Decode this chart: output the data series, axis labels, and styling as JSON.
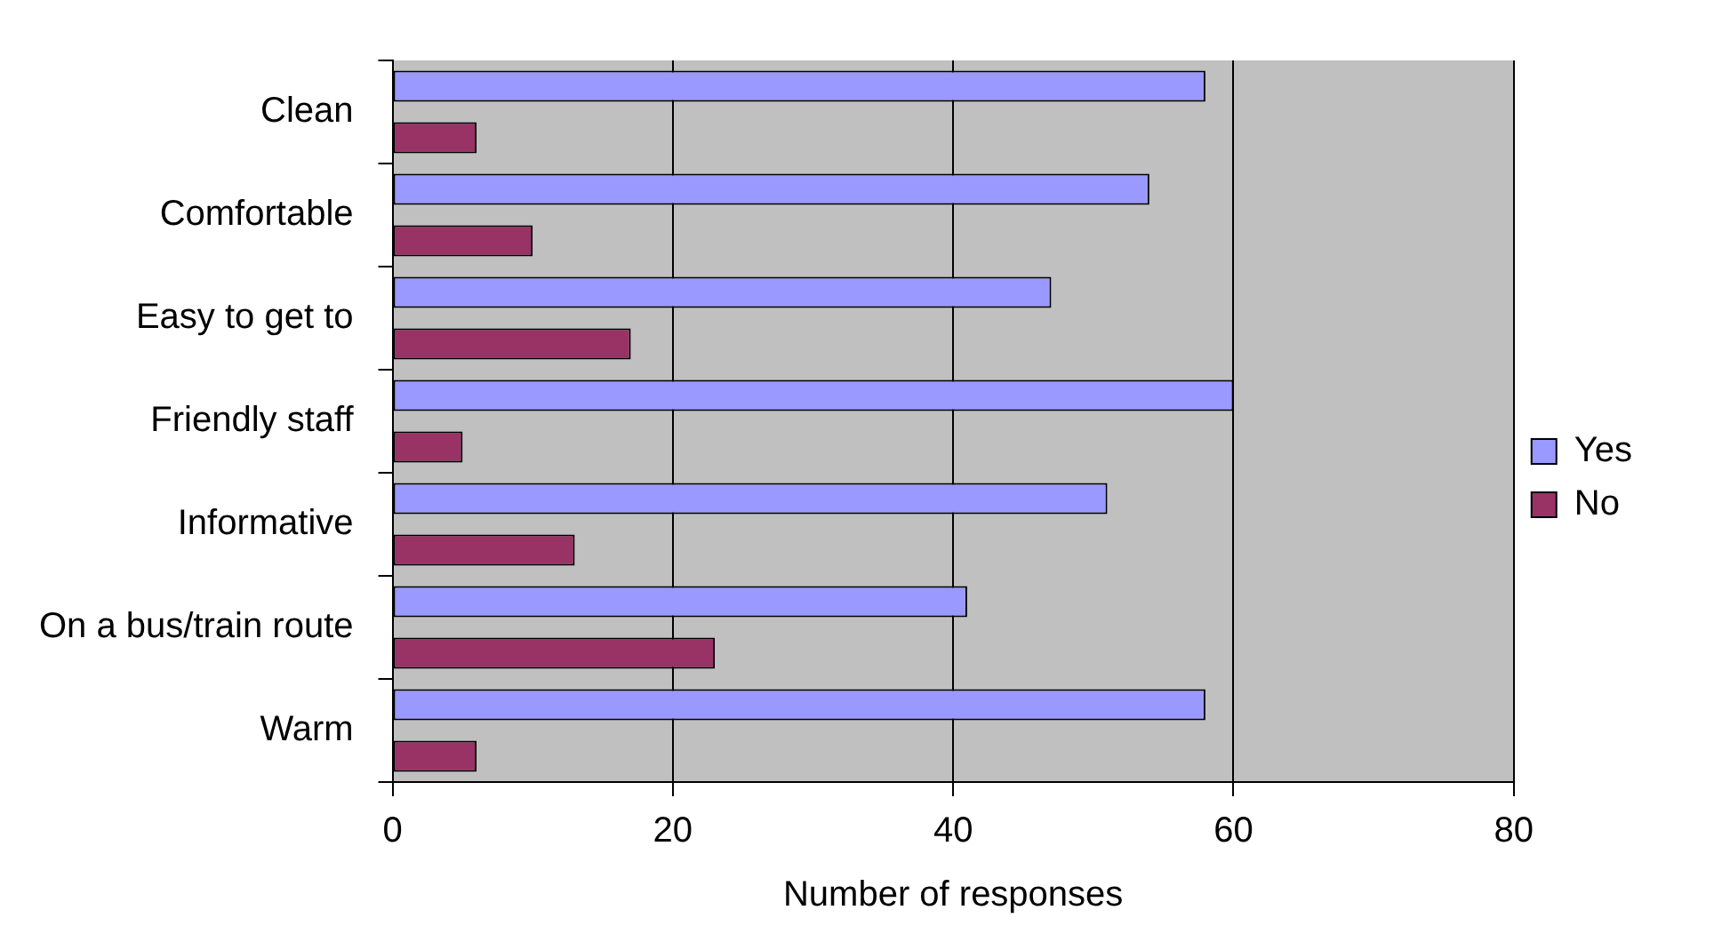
{
  "chart_data": {
    "type": "bar",
    "orientation": "horizontal",
    "xlabel": "Number of responses",
    "categories": [
      "Clean",
      "Comfortable",
      "Easy to get to",
      "Friendly staff",
      "Informative",
      "On a bus/train route",
      "Warm"
    ],
    "series": [
      {
        "name": "Yes",
        "color": "#9999ff",
        "values": [
          58,
          54,
          47,
          60,
          51,
          41,
          58
        ]
      },
      {
        "name": "No",
        "color": "#993366",
        "values": [
          6,
          10,
          17,
          5,
          13,
          23,
          6
        ]
      }
    ],
    "xlim": [
      0,
      80
    ],
    "xticks": [
      0,
      20,
      40,
      60,
      80
    ],
    "grid": "x",
    "legend": "right"
  }
}
